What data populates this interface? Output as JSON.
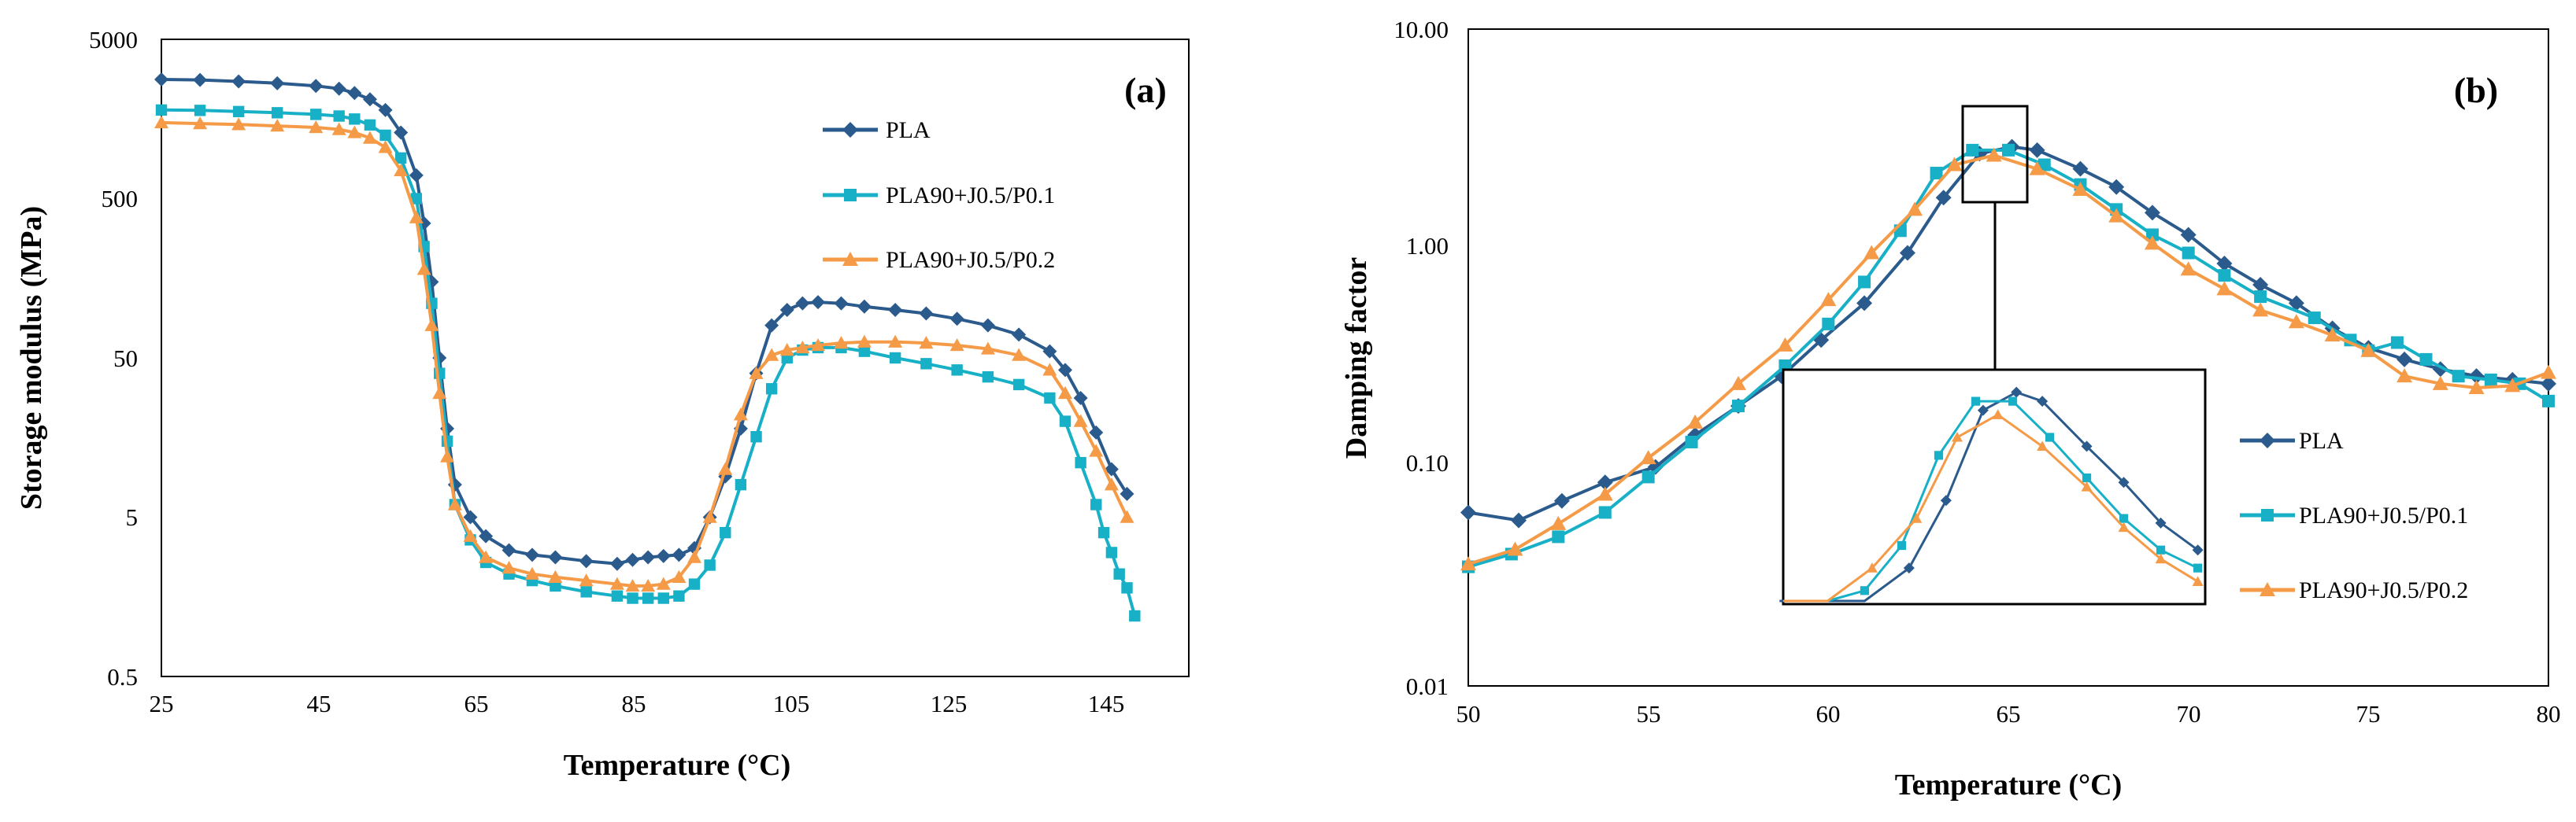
{
  "colors": {
    "PLA": "#2B5A8C",
    "PLA90+J0.5/P0.1": "#17B0C6",
    "PLA90+J0.5/P0.2": "#F59A46"
  },
  "chart_data": [
    {
      "type": "line",
      "panel_label": "(a)",
      "title": "",
      "xlabel": "Temperature (°C)",
      "ylabel": "Storage modulus (MPa)",
      "xlim": [
        25,
        158
      ],
      "ylim": [
        0.5,
        5000
      ],
      "yscale": "log",
      "x_ticks": [
        "25",
        "45",
        "65",
        "85",
        "105",
        "125",
        "145"
      ],
      "y_ticks": [
        "0.5",
        "5",
        "50",
        "500",
        "5000"
      ],
      "legend": [
        "PLA",
        "PLA90+J0.5/P0.1",
        "PLA90+J0.5/P0.2"
      ],
      "series": [
        {
          "name": "PLA",
          "points": [
            [
              25,
              2800
            ],
            [
              30,
              2780
            ],
            [
              35,
              2720
            ],
            [
              40,
              2650
            ],
            [
              45,
              2550
            ],
            [
              48,
              2450
            ],
            [
              50,
              2300
            ],
            [
              52,
              2100
            ],
            [
              54,
              1800
            ],
            [
              56,
              1300
            ],
            [
              58,
              700
            ],
            [
              59,
              350
            ],
            [
              60,
              150
            ],
            [
              61,
              50
            ],
            [
              62,
              18
            ],
            [
              63,
              8
            ],
            [
              65,
              5
            ],
            [
              67,
              3.8
            ],
            [
              70,
              3.1
            ],
            [
              73,
              2.9
            ],
            [
              76,
              2.8
            ],
            [
              80,
              2.65
            ],
            [
              84,
              2.55
            ],
            [
              86,
              2.7
            ],
            [
              88,
              2.8
            ],
            [
              90,
              2.85
            ],
            [
              92,
              2.9
            ],
            [
              94,
              3.2
            ],
            [
              96,
              5
            ],
            [
              98,
              9
            ],
            [
              100,
              18
            ],
            [
              102,
              40
            ],
            [
              104,
              80
            ],
            [
              106,
              100
            ],
            [
              108,
              110
            ],
            [
              110,
              112
            ],
            [
              113,
              110
            ],
            [
              116,
              105
            ],
            [
              120,
              100
            ],
            [
              124,
              95
            ],
            [
              128,
              88
            ],
            [
              132,
              80
            ],
            [
              136,
              70
            ],
            [
              140,
              55
            ],
            [
              142,
              42
            ],
            [
              144,
              28
            ],
            [
              146,
              17
            ],
            [
              148,
              10
            ],
            [
              150,
              7
            ]
          ]
        },
        {
          "name": "PLA90+J0.5/P0.1",
          "points": [
            [
              25,
              1800
            ],
            [
              30,
              1790
            ],
            [
              35,
              1760
            ],
            [
              40,
              1730
            ],
            [
              45,
              1690
            ],
            [
              48,
              1650
            ],
            [
              50,
              1580
            ],
            [
              52,
              1450
            ],
            [
              54,
              1250
            ],
            [
              56,
              900
            ],
            [
              58,
              500
            ],
            [
              59,
              250
            ],
            [
              60,
              110
            ],
            [
              61,
              40
            ],
            [
              62,
              15
            ],
            [
              63,
              6
            ],
            [
              65,
              3.6
            ],
            [
              67,
              2.6
            ],
            [
              70,
              2.2
            ],
            [
              73,
              2.0
            ],
            [
              76,
              1.85
            ],
            [
              80,
              1.7
            ],
            [
              84,
              1.6
            ],
            [
              86,
              1.55
            ],
            [
              88,
              1.55
            ],
            [
              90,
              1.55
            ],
            [
              92,
              1.6
            ],
            [
              94,
              1.9
            ],
            [
              96,
              2.5
            ],
            [
              98,
              4
            ],
            [
              100,
              8
            ],
            [
              102,
              16
            ],
            [
              104,
              32
            ],
            [
              106,
              50
            ],
            [
              108,
              56
            ],
            [
              110,
              58
            ],
            [
              113,
              58
            ],
            [
              116,
              55
            ],
            [
              120,
              50
            ],
            [
              124,
              46
            ],
            [
              128,
              42
            ],
            [
              132,
              38
            ],
            [
              136,
              34
            ],
            [
              140,
              28
            ],
            [
              142,
              20
            ],
            [
              144,
              11
            ],
            [
              146,
              6
            ],
            [
              147,
              4
            ],
            [
              148,
              3
            ],
            [
              149,
              2.2
            ],
            [
              150,
              1.8
            ],
            [
              151,
              1.2
            ]
          ]
        },
        {
          "name": "PLA90+J0.5/P0.2",
          "points": [
            [
              25,
              1500
            ],
            [
              30,
              1480
            ],
            [
              35,
              1460
            ],
            [
              40,
              1430
            ],
            [
              45,
              1400
            ],
            [
              48,
              1360
            ],
            [
              50,
              1300
            ],
            [
              52,
              1200
            ],
            [
              54,
              1050
            ],
            [
              56,
              750
            ],
            [
              58,
              380
            ],
            [
              59,
              180
            ],
            [
              60,
              80
            ],
            [
              61,
              30
            ],
            [
              62,
              12
            ],
            [
              63,
              6
            ],
            [
              65,
              3.8
            ],
            [
              67,
              2.8
            ],
            [
              70,
              2.4
            ],
            [
              73,
              2.2
            ],
            [
              76,
              2.1
            ],
            [
              80,
              2.0
            ],
            [
              84,
              1.9
            ],
            [
              86,
              1.85
            ],
            [
              88,
              1.85
            ],
            [
              90,
              1.9
            ],
            [
              92,
              2.1
            ],
            [
              94,
              2.8
            ],
            [
              96,
              5
            ],
            [
              98,
              10
            ],
            [
              100,
              22
            ],
            [
              102,
              40
            ],
            [
              104,
              52
            ],
            [
              106,
              56
            ],
            [
              108,
              58
            ],
            [
              110,
              60
            ],
            [
              113,
              62
            ],
            [
              116,
              63
            ],
            [
              120,
              63
            ],
            [
              124,
              62
            ],
            [
              128,
              60
            ],
            [
              132,
              57
            ],
            [
              136,
              52
            ],
            [
              140,
              42
            ],
            [
              142,
              30
            ],
            [
              144,
              20
            ],
            [
              146,
              13
            ],
            [
              148,
              8
            ],
            [
              150,
              5
            ]
          ]
        }
      ]
    },
    {
      "type": "line",
      "panel_label": "(b)",
      "title": "",
      "xlabel": "Temperature (°C)",
      "ylabel": "Damping factor",
      "xlim": [
        50,
        80
      ],
      "ylim": [
        0.01,
        10
      ],
      "yscale": "log",
      "x_ticks": [
        "50",
        "55",
        "60",
        "65",
        "70",
        "75",
        "80"
      ],
      "y_ticks": [
        "0.01",
        "0.10",
        "1.00",
        "10.00"
      ],
      "legend": [
        "PLA",
        "PLA90+J0.5/P0.1",
        "PLA90+J0.5/P0.2"
      ],
      "inset": "zoom of peak region around 63.5–65 °C",
      "series": [
        {
          "name": "PLA",
          "points": [
            [
              50,
              0.062
            ],
            [
              51.4,
              0.057
            ],
            [
              52.6,
              0.07
            ],
            [
              53.8,
              0.085
            ],
            [
              55.2,
              0.1
            ],
            [
              56.3,
              0.14
            ],
            [
              57.5,
              0.19
            ],
            [
              58.7,
              0.26
            ],
            [
              59.8,
              0.38
            ],
            [
              61,
              0.56
            ],
            [
              62.2,
              0.95
            ],
            [
              63.2,
              1.7
            ],
            [
              64.2,
              2.7
            ],
            [
              65.1,
              2.9
            ],
            [
              65.8,
              2.8
            ],
            [
              67,
              2.3
            ],
            [
              68,
              1.9
            ],
            [
              69,
              1.45
            ],
            [
              70,
              1.15
            ],
            [
              71,
              0.85
            ],
            [
              72,
              0.68
            ],
            [
              73,
              0.56
            ],
            [
              74,
              0.43
            ],
            [
              75,
              0.35
            ],
            [
              76,
              0.31
            ],
            [
              77,
              0.28
            ],
            [
              78,
              0.26
            ],
            [
              79,
              0.25
            ],
            [
              80,
              0.24
            ]
          ]
        },
        {
          "name": "PLA90+J0.5/P0.1",
          "points": [
            [
              50,
              0.035
            ],
            [
              51.2,
              0.04
            ],
            [
              52.5,
              0.048
            ],
            [
              53.8,
              0.062
            ],
            [
              55,
              0.09
            ],
            [
              56.2,
              0.13
            ],
            [
              57.5,
              0.19
            ],
            [
              58.8,
              0.29
            ],
            [
              60,
              0.45
            ],
            [
              61,
              0.7
            ],
            [
              62,
              1.2
            ],
            [
              63,
              2.2
            ],
            [
              64,
              2.8
            ],
            [
              65,
              2.8
            ],
            [
              66,
              2.4
            ],
            [
              67,
              1.95
            ],
            [
              68,
              1.5
            ],
            [
              69,
              1.15
            ],
            [
              70,
              0.95
            ],
            [
              71,
              0.75
            ],
            [
              72,
              0.6
            ],
            [
              73.5,
              0.48
            ],
            [
              74.5,
              0.38
            ],
            [
              75,
              0.34
            ],
            [
              75.8,
              0.37
            ],
            [
              76.6,
              0.31
            ],
            [
              77.5,
              0.26
            ],
            [
              78.4,
              0.25
            ],
            [
              79.2,
              0.24
            ],
            [
              80,
              0.2
            ]
          ]
        },
        {
          "name": "PLA90+J0.5/P0.2",
          "points": [
            [
              50,
              0.036
            ],
            [
              51.3,
              0.042
            ],
            [
              52.5,
              0.055
            ],
            [
              53.8,
              0.075
            ],
            [
              55,
              0.11
            ],
            [
              56.3,
              0.16
            ],
            [
              57.5,
              0.24
            ],
            [
              58.8,
              0.36
            ],
            [
              60,
              0.58
            ],
            [
              61.2,
              0.95
            ],
            [
              62.4,
              1.5
            ],
            [
              63.5,
              2.4
            ],
            [
              64.6,
              2.65
            ],
            [
              65.8,
              2.3
            ],
            [
              67,
              1.85
            ],
            [
              68,
              1.4
            ],
            [
              69,
              1.05
            ],
            [
              70,
              0.8
            ],
            [
              71,
              0.65
            ],
            [
              72,
              0.52
            ],
            [
              73,
              0.46
            ],
            [
              74,
              0.4
            ],
            [
              75,
              0.34
            ],
            [
              76,
              0.26
            ],
            [
              77,
              0.24
            ],
            [
              78,
              0.23
            ],
            [
              79,
              0.235
            ],
            [
              80,
              0.27
            ]
          ]
        }
      ]
    }
  ]
}
